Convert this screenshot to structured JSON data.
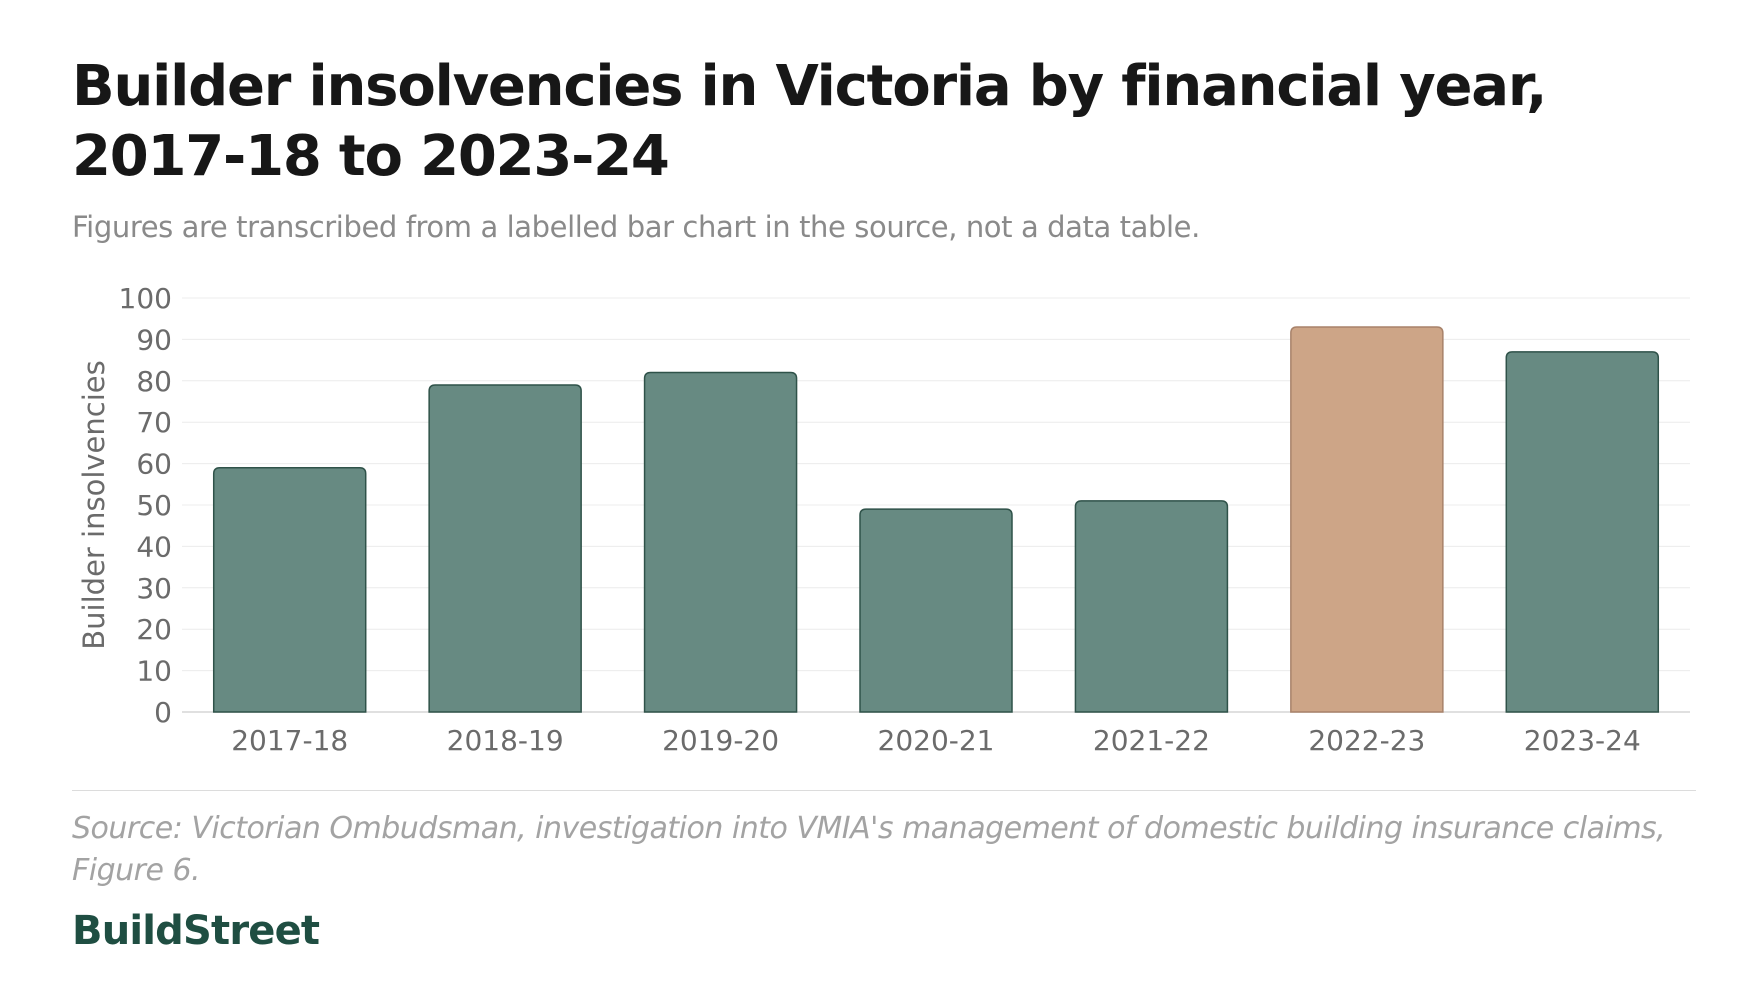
{
  "header": {
    "title": "Builder insolvencies in Victoria by financial year, 2017-18 to 2023-24",
    "subtitle": "Figures are transcribed from a labelled bar chart in the source, not a data table."
  },
  "chart_data": {
    "type": "bar",
    "categories": [
      "2017-18",
      "2018-19",
      "2019-20",
      "2020-21",
      "2021-22",
      "2022-23",
      "2023-24"
    ],
    "values": [
      59,
      79,
      82,
      49,
      51,
      93,
      87
    ],
    "highlight_category": "2022-23",
    "ylabel": "Builder insolvencies",
    "xlabel": "",
    "ylim": [
      0,
      100
    ],
    "yticks": [
      0,
      10,
      20,
      30,
      40,
      50,
      60,
      70,
      80,
      90,
      100
    ],
    "grid": true,
    "colors": {
      "bar": "#678a82",
      "bar_stroke": "#2f5249",
      "highlight": "#cda587",
      "highlight_stroke": "#a8826a",
      "grid": "#ececec"
    }
  },
  "footer": {
    "source": "Source: Victorian Ombudsman, investigation into VMIA's management of domestic building insurance claims, Figure 6.",
    "brand": "BuildStreet"
  }
}
